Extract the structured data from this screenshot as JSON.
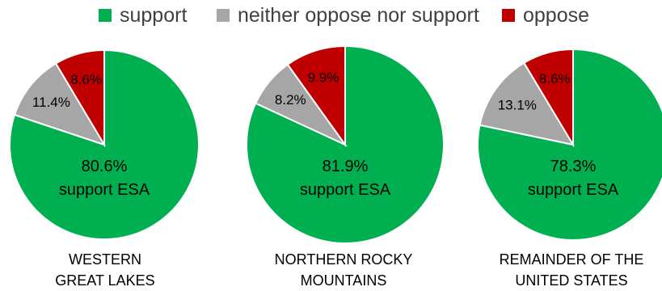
{
  "chart_data": [
    {
      "type": "pie",
      "title": "WESTERN GREAT LAKES",
      "title_lines": [
        "WESTERN",
        "GREAT LAKES"
      ],
      "categories": [
        "support",
        "neither oppose nor support",
        "oppose"
      ],
      "values": [
        80.6,
        11.4,
        8.6
      ],
      "data_labels": [
        "80.6%",
        "11.4%",
        "8.6%"
      ],
      "center_label": [
        "80.6%",
        "support ESA"
      ]
    },
    {
      "type": "pie",
      "title": "NORTHERN ROCKY MOUNTAINS",
      "title_lines": [
        "NORTHERN ROCKY",
        "MOUNTAINS"
      ],
      "categories": [
        "support",
        "neither oppose nor support",
        "oppose"
      ],
      "values": [
        81.9,
        8.2,
        9.9
      ],
      "data_labels": [
        "81.9%",
        "8.2%",
        "9.9%"
      ],
      "center_label": [
        "81.9%",
        "support ESA"
      ]
    },
    {
      "type": "pie",
      "title": "REMAINDER OF THE UNITED STATES",
      "title_lines": [
        "REMAINDER OF THE",
        "UNITED STATES"
      ],
      "categories": [
        "support",
        "neither oppose nor support",
        "oppose"
      ],
      "values": [
        78.3,
        13.1,
        8.6
      ],
      "data_labels": [
        "78.3%",
        "13.1%",
        "8.6%"
      ],
      "center_label": [
        "78.3%",
        "support ESA"
      ]
    }
  ],
  "legend": {
    "position": "top",
    "items": [
      {
        "label": "support",
        "color": "#00B050"
      },
      {
        "label": "neither oppose nor support",
        "color": "#A6A6A6"
      },
      {
        "label": "oppose",
        "color": "#C00000"
      }
    ]
  },
  "colors": {
    "support": "#00B050",
    "neither": "#A6A6A6",
    "oppose": "#C00000",
    "slice_border": "#FFFFFF",
    "label_text": "#000000"
  }
}
